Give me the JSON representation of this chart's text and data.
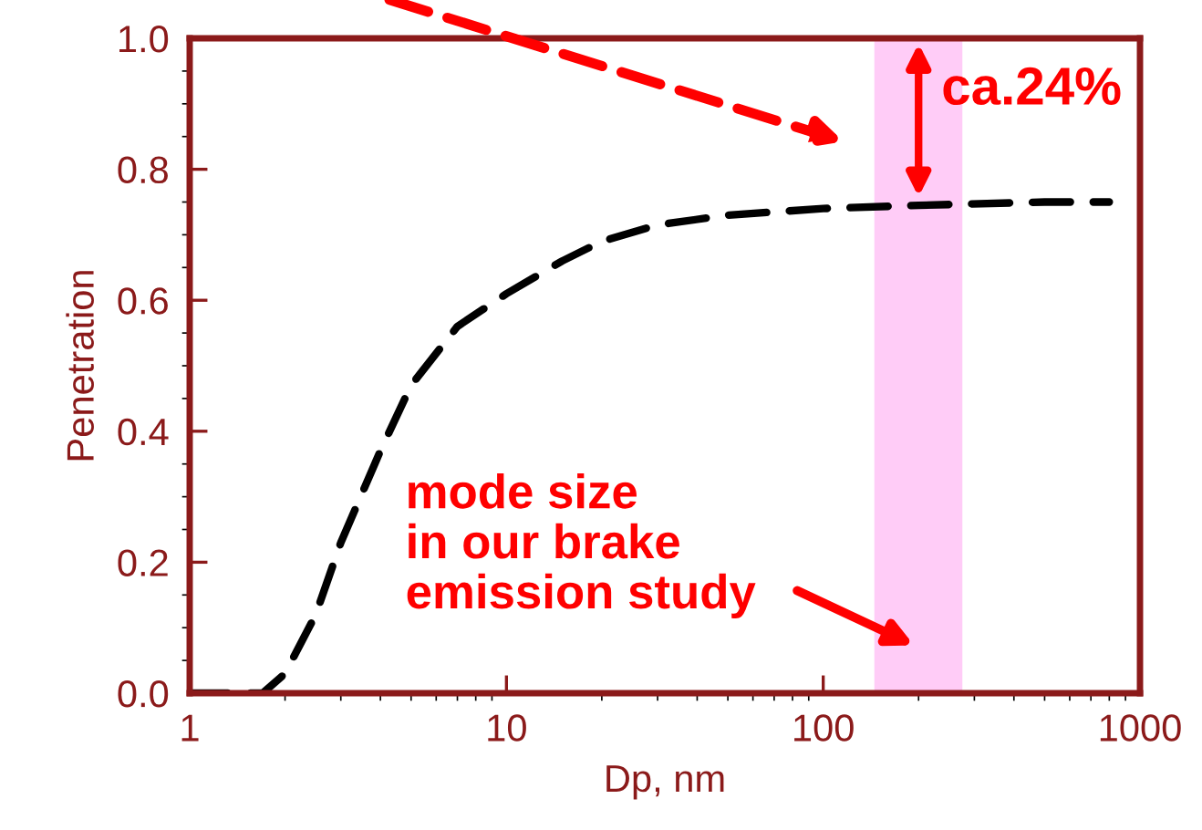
{
  "chart_data": {
    "type": "line",
    "xlabel": "Dp, nm",
    "ylabel": "Penetration",
    "x": [
      1,
      1.3,
      1.7,
      2,
      2.5,
      3,
      4,
      5,
      7,
      10,
      15,
      20,
      30,
      50,
      100,
      200,
      500,
      800
    ],
    "series": [
      {
        "color": "#000000",
        "values": [
          0,
          0,
          0,
          0.03,
          0.12,
          0.23,
          0.37,
          0.47,
          0.56,
          0.61,
          0.66,
          0.69,
          0.715,
          0.73,
          0.74,
          0.745,
          0.75,
          0.75
        ]
      }
    ],
    "line_style": "dashed",
    "marker": "none",
    "log": "x",
    "xlim": [
      1,
      1000
    ],
    "xticks": [
      1,
      10,
      100,
      1000
    ],
    "ylim": [
      0,
      1.0
    ],
    "yticks": [
      {
        "value": 0,
        "label": "0.0"
      },
      {
        "value": 0.2,
        "label": "0.2"
      },
      {
        "value": 0.4,
        "label": "0.4"
      },
      {
        "value": 0.6,
        "label": "0.6"
      },
      {
        "value": 0.8,
        "label": "0.8"
      },
      {
        "value": 1.0,
        "label": "1.0"
      }
    ],
    "bands": [
      {
        "axis": "x",
        "from": 145,
        "to": 275,
        "color": "#ffccf7"
      }
    ],
    "annotations": [
      {
        "text": "ca.24%",
        "x": 200,
        "y": 0.75
      },
      "mode size\nin our brake\nemission study"
    ],
    "grid": false,
    "legend": false
  }
}
